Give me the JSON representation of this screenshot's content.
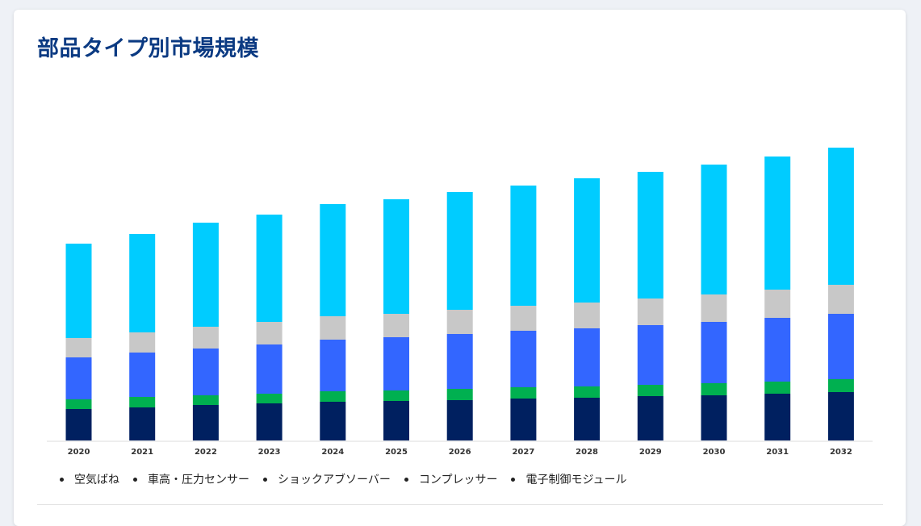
{
  "title": "部品タイプ別市場規模",
  "chart_data": {
    "type": "bar",
    "stacked": true,
    "categories": [
      "2020",
      "2021",
      "2022",
      "2023",
      "2024",
      "2025",
      "2026",
      "2027",
      "2028",
      "2029",
      "2030",
      "2031",
      "2032"
    ],
    "series": [
      {
        "name": "空気ばね",
        "color": "#002060",
        "values": [
          39,
          41,
          44,
          46,
          48,
          49,
          50,
          52,
          53,
          55,
          56,
          58,
          60
        ]
      },
      {
        "name": "車高・圧力センサー",
        "color": "#00b050",
        "values": [
          12,
          13,
          12,
          12,
          13,
          13,
          14,
          14,
          14,
          14,
          15,
          15,
          16
        ]
      },
      {
        "name": "ショックアブソーバー",
        "color": "#3366ff",
        "values": [
          52,
          55,
          58,
          61,
          64,
          66,
          68,
          70,
          72,
          74,
          76,
          79,
          81
        ]
      },
      {
        "name": "コンプレッサー",
        "color": "#c8c8c8",
        "values": [
          24,
          25,
          27,
          28,
          29,
          29,
          30,
          31,
          32,
          33,
          34,
          35,
          36
        ]
      },
      {
        "name": "電子制御モジュール",
        "color": "#00ccff",
        "values": [
          117,
          122,
          129,
          133,
          139,
          142,
          146,
          149,
          154,
          157,
          161,
          165,
          170
        ]
      }
    ],
    "legend_position": "bottom-left",
    "grid": false
  }
}
